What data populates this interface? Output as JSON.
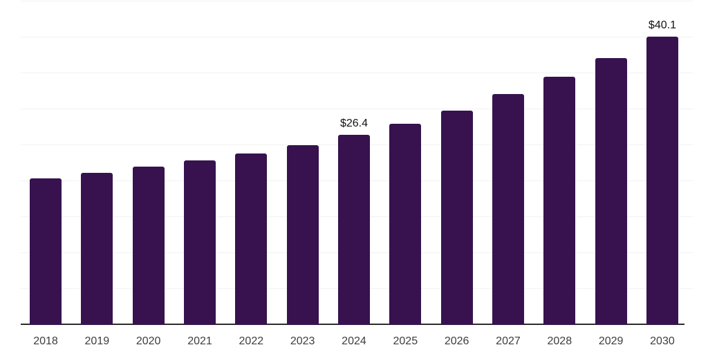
{
  "chart_data": {
    "type": "bar",
    "title": "",
    "xlabel": "",
    "ylabel": "",
    "categories": [
      "2018",
      "2019",
      "2020",
      "2021",
      "2022",
      "2023",
      "2024",
      "2025",
      "2026",
      "2027",
      "2028",
      "2029",
      "2030"
    ],
    "values": [
      20.4,
      21.2,
      22.0,
      22.9,
      23.8,
      25.0,
      26.4,
      28.0,
      29.8,
      32.1,
      34.5,
      37.1,
      40.1
    ],
    "point_labels": [
      "",
      "",
      "",
      "",
      "",
      "",
      "$26.4",
      "",
      "",
      "",
      "",
      "",
      "$40.1"
    ],
    "ylim": [
      0,
      45
    ],
    "grid_step": 5,
    "grid": true,
    "legend": "none",
    "y_axis_tick_labels_visible": false,
    "bar_color": "#37124e",
    "gridline_color": "#f2f2f2",
    "axis_line_color": "#2b2b2b",
    "data_label_color": "#111111",
    "tick_label_color": "#3d3d3d"
  }
}
